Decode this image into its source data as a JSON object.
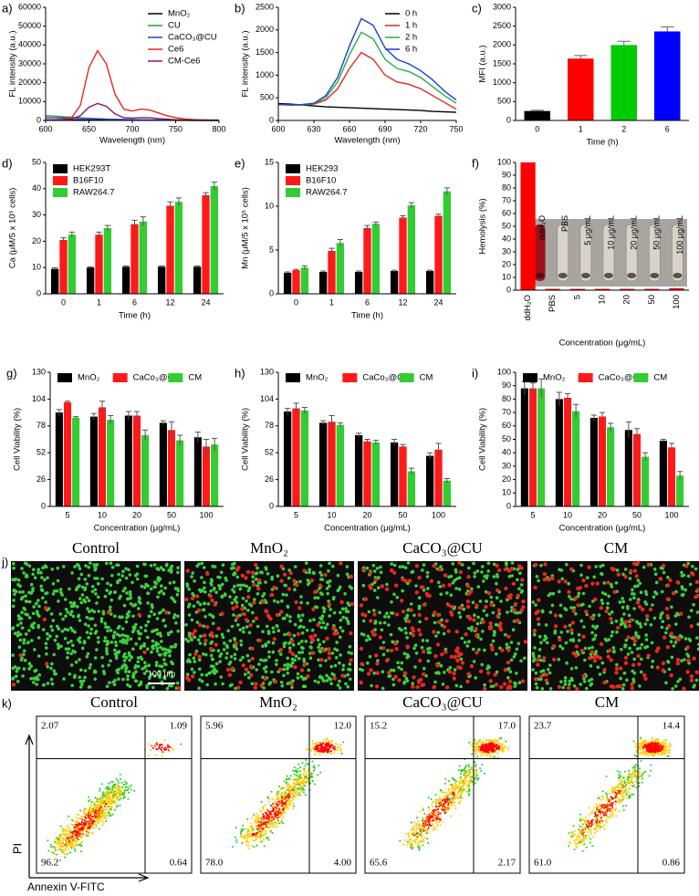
{
  "chart_data": [
    {
      "type": "line",
      "panel": "a)",
      "xlabel": "Wavelength (nm)",
      "ylabel": "FL intensity (a.u.)",
      "x": [
        600,
        610,
        620,
        630,
        640,
        650,
        660,
        670,
        680,
        690,
        700,
        710,
        720,
        730,
        740,
        750,
        760,
        770,
        780,
        790,
        800
      ],
      "xlim": [
        600,
        800
      ],
      "xticks": [
        600,
        650,
        700,
        750,
        800
      ],
      "ylim": [
        0,
        60000
      ],
      "yticks": [
        0,
        10000,
        20000,
        30000,
        40000,
        50000,
        60000
      ],
      "legend": "upper right",
      "series": [
        {
          "name": "MnO₂",
          "color": "#000000",
          "values": [
            200,
            200,
            200,
            200,
            200,
            200,
            200,
            200,
            200,
            200,
            200,
            200,
            200,
            200,
            200,
            200,
            200,
            200,
            200,
            200,
            200
          ]
        },
        {
          "name": "CU",
          "color": "#2ca02c",
          "values": [
            2500,
            2300,
            2000,
            1700,
            1400,
            1100,
            900,
            700,
            500,
            400,
            300,
            200,
            150,
            100,
            100,
            50,
            50,
            0,
            0,
            0,
            0
          ]
        },
        {
          "name": "CaCO₃@CU",
          "color": "#1f3fd6",
          "values": [
            1500,
            1400,
            1300,
            1200,
            1000,
            900,
            800,
            700,
            600,
            500,
            400,
            300,
            250,
            200,
            150,
            100,
            100,
            50,
            50,
            0,
            0
          ]
        },
        {
          "name": "Ce6",
          "color": "#e8281e",
          "values": [
            300,
            400,
            600,
            1500,
            8000,
            28000,
            37000,
            30000,
            14000,
            6000,
            5000,
            6000,
            5500,
            4000,
            2500,
            1500,
            800,
            500,
            300,
            200,
            100
          ]
        },
        {
          "name": "CM-Ce6",
          "color": "#8b1a6b",
          "values": [
            300,
            300,
            400,
            700,
            2500,
            7000,
            9000,
            7500,
            3500,
            1500,
            1200,
            1500,
            1400,
            1000,
            700,
            400,
            200,
            100,
            100,
            50,
            50
          ]
        }
      ]
    },
    {
      "type": "line",
      "panel": "b)",
      "xlabel": "Wavelength (nm)",
      "ylabel": "FL intensity (a.u.)",
      "x": [
        600,
        610,
        620,
        630,
        640,
        650,
        660,
        670,
        680,
        690,
        700,
        710,
        720,
        730,
        740,
        750
      ],
      "xlim": [
        600,
        750
      ],
      "xticks": [
        600,
        630,
        660,
        690,
        720,
        750
      ],
      "ylim": [
        0,
        2500
      ],
      "yticks": [
        0,
        500,
        1000,
        1500,
        2000,
        2500
      ],
      "legend": "upper right",
      "series": [
        {
          "name": "0 h",
          "color": "#000000",
          "values": [
            370,
            360,
            340,
            320,
            300,
            290,
            280,
            270,
            260,
            250,
            240,
            230,
            220,
            200,
            190,
            180
          ]
        },
        {
          "name": "1 h",
          "color": "#e8281e",
          "values": [
            350,
            340,
            340,
            360,
            450,
            700,
            1150,
            1500,
            1350,
            1000,
            850,
            800,
            700,
            550,
            400,
            250
          ]
        },
        {
          "name": "2 h",
          "color": "#22b14c",
          "values": [
            350,
            340,
            340,
            370,
            500,
            850,
            1450,
            1950,
            1800,
            1350,
            1150,
            1080,
            950,
            750,
            550,
            380
          ]
        },
        {
          "name": "6 h",
          "color": "#1f3fd6",
          "values": [
            350,
            340,
            350,
            380,
            550,
            950,
            1650,
            2250,
            2100,
            1600,
            1350,
            1250,
            1100,
            900,
            650,
            450
          ]
        }
      ]
    },
    {
      "type": "bar",
      "panel": "c)",
      "xlabel": "Time (h)",
      "ylabel": "MFI (a.u.)",
      "categories": [
        "0",
        "1",
        "2",
        "6"
      ],
      "values": [
        250,
        1640,
        2000,
        2360
      ],
      "errors": [
        20,
        80,
        100,
        120
      ],
      "colors": [
        "#000000",
        "#ff0000",
        "#00cc00",
        "#0000ff"
      ],
      "ylim": [
        0,
        3000
      ],
      "yticks": [
        0,
        500,
        1000,
        1500,
        2000,
        2500,
        3000
      ]
    },
    {
      "type": "grouped_bar",
      "panel": "d)",
      "xlabel": "Time (h)",
      "ylabel": "Ca (μM/5 x 10⁵ cells)",
      "categories": [
        "0",
        "1",
        "6",
        "12",
        "24"
      ],
      "ylim": [
        0,
        50
      ],
      "yticks": [
        0,
        10,
        20,
        30,
        40,
        50
      ],
      "legend": "upper left",
      "series": [
        {
          "name": "HEK293T",
          "color": "#000000",
          "values": [
            9.5,
            10,
            10.3,
            10.3,
            10.3
          ],
          "errors": [
            0.4,
            0.3,
            0.3,
            0.3,
            0.3
          ]
        },
        {
          "name": "B16F10",
          "color": "#ff1a1a",
          "values": [
            20.5,
            22.5,
            26.5,
            33.5,
            37.5
          ],
          "errors": [
            0.8,
            1,
            1.5,
            1.5,
            1
          ]
        },
        {
          "name": "RAW264.7",
          "color": "#33cc33",
          "values": [
            22.5,
            25,
            27.5,
            35,
            41
          ],
          "errors": [
            1,
            1,
            1.8,
            1.5,
            1.5
          ]
        }
      ]
    },
    {
      "type": "grouped_bar",
      "panel": "e)",
      "xlabel": "Time (h)",
      "ylabel": "Mn (μM/5 x 10⁵ cells)",
      "categories": [
        "0",
        "1",
        "6",
        "12",
        "24"
      ],
      "ylim": [
        0,
        15
      ],
      "yticks": [
        0,
        5,
        10,
        15
      ],
      "legend": "upper left",
      "series": [
        {
          "name": "HEK293",
          "color": "#000000",
          "values": [
            2.4,
            2.5,
            2.5,
            2.6,
            2.6
          ],
          "errors": [
            0.1,
            0.1,
            0.1,
            0.1,
            0.1
          ]
        },
        {
          "name": "B16F10",
          "color": "#ff1a1a",
          "values": [
            2.7,
            4.9,
            7.5,
            8.7,
            8.9
          ],
          "errors": [
            0.1,
            0.3,
            0.3,
            0.2,
            0.2
          ]
        },
        {
          "name": "RAW264.7",
          "color": "#33cc33",
          "values": [
            3.0,
            5.8,
            8.0,
            10.1,
            11.7
          ],
          "errors": [
            0.2,
            0.4,
            0.2,
            0.3,
            0.4
          ]
        }
      ]
    },
    {
      "type": "bar",
      "panel": "f)",
      "xlabel": "Concentration (μg/mL)",
      "ylabel": "Hemolysis (%)",
      "categories": [
        "ddH₂O",
        "PBS",
        "5",
        "10",
        "20",
        "50",
        "100"
      ],
      "values": [
        100,
        1,
        1,
        1,
        1,
        1,
        1.5
      ],
      "color": "#ff0000",
      "rotate_xlabels": true,
      "ylim": [
        0,
        100
      ],
      "yticks": [
        0,
        10,
        20,
        30,
        40,
        50,
        60,
        70,
        80,
        90,
        100
      ],
      "inset_labels": [
        "ddH₂O",
        "PBS",
        "5 μg/mL",
        "10 μg/mL",
        "20 μg/mL",
        "50 μg/mL",
        "100 μg/mL"
      ]
    },
    {
      "type": "grouped_bar",
      "panel": "g)",
      "xlabel": "Concentration (μg/mL)",
      "ylabel": "Cell Viability (%)",
      "categories": [
        "5",
        "10",
        "20",
        "50",
        "100"
      ],
      "ylim": [
        0,
        130
      ],
      "yticks": [
        0,
        26,
        52,
        78,
        104,
        130
      ],
      "legend": "top",
      "series": [
        {
          "name": "MnO₂",
          "color": "#000000",
          "values": [
            91,
            87,
            88,
            81,
            67
          ],
          "errors": [
            3,
            3,
            4,
            2,
            5
          ]
        },
        {
          "name": "CaCo₃@CU",
          "color": "#ff1a1a",
          "values": [
            101,
            96,
            88,
            74,
            58
          ],
          "errors": [
            1,
            6,
            4,
            8,
            7
          ]
        },
        {
          "name": "CM",
          "color": "#33cc33",
          "values": [
            86,
            84,
            69,
            64,
            60
          ],
          "errors": [
            1,
            4,
            5,
            5,
            6
          ]
        }
      ]
    },
    {
      "type": "grouped_bar",
      "panel": "h)",
      "xlabel": "Concentration (μg/mL)",
      "ylabel": "Cell Viability (%)",
      "categories": [
        "5",
        "10",
        "20",
        "50",
        "100"
      ],
      "ylim": [
        0,
        130
      ],
      "yticks": [
        0,
        26,
        52,
        78,
        104,
        130
      ],
      "legend": "top",
      "series": [
        {
          "name": "MnO₂",
          "color": "#000000",
          "values": [
            92,
            81,
            69,
            62,
            49
          ],
          "errors": [
            3,
            2,
            2,
            3,
            3
          ]
        },
        {
          "name": "CaCo₃@CU",
          "color": "#ff1a1a",
          "values": [
            95,
            82,
            63,
            58,
            55
          ],
          "errors": [
            5,
            6,
            2,
            2,
            6
          ]
        },
        {
          "name": "CM",
          "color": "#33cc33",
          "values": [
            93,
            79,
            62,
            34,
            25
          ],
          "errors": [
            3,
            2,
            2,
            3,
            2
          ]
        }
      ]
    },
    {
      "type": "grouped_bar",
      "panel": "i)",
      "xlabel": "Concentration (μg/mL)",
      "ylabel": "Cell Viability (%)",
      "categories": [
        "5",
        "10",
        "20",
        "50",
        "100"
      ],
      "ylim": [
        0,
        100
      ],
      "yticks": [
        0,
        10,
        20,
        30,
        40,
        50,
        60,
        70,
        80,
        90,
        100
      ],
      "legend": "top",
      "series": [
        {
          "name": "MnO₂",
          "color": "#000000",
          "values": [
            88,
            80,
            66,
            57,
            49
          ],
          "errors": [
            5,
            5,
            2,
            6,
            1
          ]
        },
        {
          "name": "CaCo₃@CU",
          "color": "#ff1a1a",
          "values": [
            88,
            81,
            67,
            54,
            44
          ],
          "errors": [
            4,
            3,
            3,
            4,
            3
          ]
        },
        {
          "name": "CM",
          "color": "#33cc33",
          "values": [
            88,
            71,
            59,
            37,
            23
          ],
          "errors": [
            7,
            5,
            3,
            3,
            3
          ]
        }
      ]
    }
  ],
  "image_panels": {
    "panel": "j)",
    "titles": [
      "Control",
      "MnO₂",
      "CaCO₃@CU",
      "CM"
    ],
    "scale_bar": "100 μm"
  },
  "flow_panels": {
    "panel": "k)",
    "y_label": "PI",
    "x_label": "Annexin V-FITC",
    "plots": [
      {
        "title": "Control",
        "upper_left": "2.07",
        "upper_right": "1.09",
        "lower_left": "96.2",
        "lower_right": "0.64"
      },
      {
        "title": "MnO₂",
        "upper_left": "5.96",
        "upper_right": "12.0",
        "lower_left": "78.0",
        "lower_right": "4.00"
      },
      {
        "title": "CaCO₃@CU",
        "upper_left": "15.2",
        "upper_right": "17.0",
        "lower_left": "65.6",
        "lower_right": "2.17"
      },
      {
        "title": "CM",
        "upper_left": "23.7",
        "upper_right": "14.4",
        "lower_left": "61.0",
        "lower_right": "0.86"
      }
    ]
  }
}
